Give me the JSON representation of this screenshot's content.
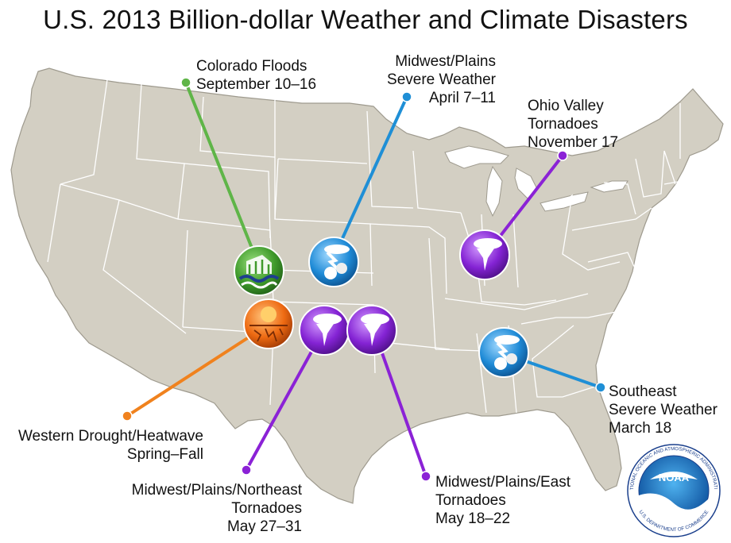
{
  "title": "U.S. 2013 Billion-dollar Weather and Climate Disasters",
  "colors": {
    "land": "#d3cfc3",
    "state_border": "#ffffff",
    "flood": "#5fb548",
    "severe": "#1f8fd6",
    "tornado": "#8b22d6",
    "drought": "#f0821e"
  },
  "events": [
    {
      "name": "Colorado Floods",
      "dates": "September 10–16",
      "category": "flood",
      "icon": "flood-icon"
    },
    {
      "name": "Midwest/Plains Severe Weather",
      "name_lines": [
        "Midwest/Plains",
        "Severe Weather"
      ],
      "dates": "April 7–11",
      "category": "severe",
      "icon": "hail-storm-icon"
    },
    {
      "name": "Ohio Valley Tornadoes",
      "name_lines": [
        "Ohio Valley",
        "Tornadoes"
      ],
      "dates": "November 17",
      "category": "tornado",
      "icon": "tornado-icon"
    },
    {
      "name": "Western Drought/Heatwave",
      "dates": "Spring–Fall",
      "category": "drought",
      "icon": "drought-icon"
    },
    {
      "name": "Southeast Severe Weather",
      "name_lines": [
        "Southeast",
        "Severe Weather"
      ],
      "dates": "March 18",
      "category": "severe",
      "icon": "hail-storm-icon"
    },
    {
      "name": "Midwest/Plains/Northeast Tornadoes",
      "name_lines": [
        "Midwest/Plains/Northeast",
        "Tornadoes"
      ],
      "dates": "May 27–31",
      "category": "tornado",
      "icon": "tornado-icon"
    },
    {
      "name": "Midwest/Plains/East Tornadoes",
      "name_lines": [
        "Midwest/Plains/East",
        "Tornadoes"
      ],
      "dates": "May 18–22",
      "category": "tornado",
      "icon": "tornado-icon"
    }
  ],
  "logo": {
    "text": "NOAA",
    "ring_top": "NATIONAL OCEANIC AND ATMOSPHERIC ADMINISTRATION",
    "ring_bottom": "U.S. DEPARTMENT OF COMMERCE"
  }
}
